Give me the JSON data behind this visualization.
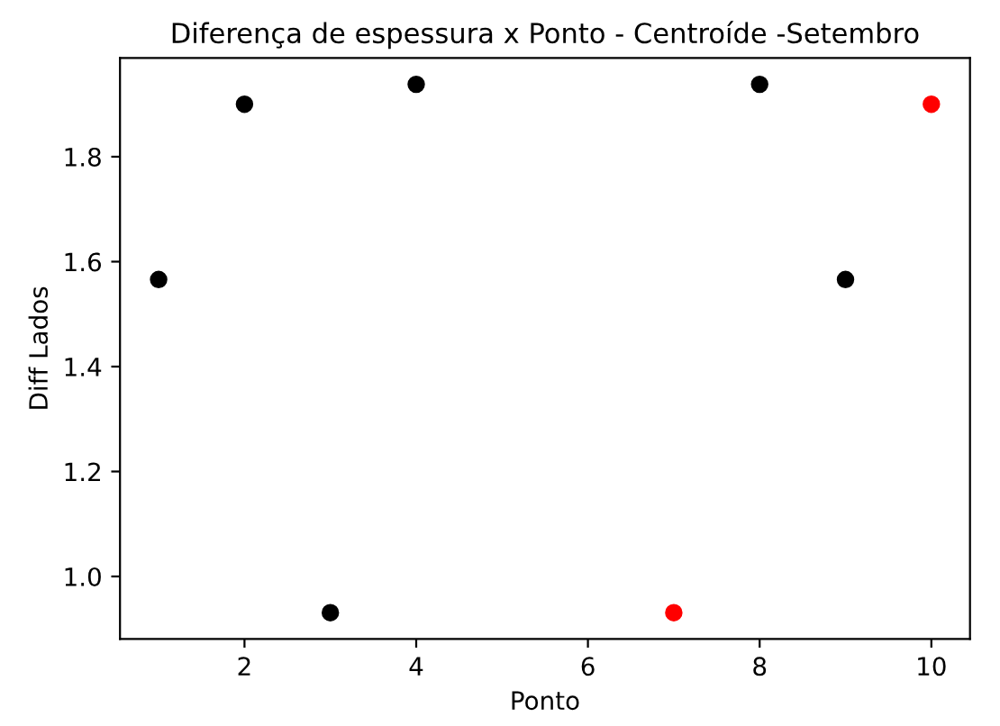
{
  "chart_data": {
    "type": "scatter",
    "title": "Diferença de espessura x Ponto - Centroíde -Setembro",
    "xlabel": "Ponto",
    "ylabel": "Diff Lados",
    "x": [
      1,
      2,
      3,
      4,
      7,
      8,
      9,
      10
    ],
    "series": [
      {
        "values": [
          1.566,
          1.9,
          0.931,
          1.938,
          0.931,
          1.938,
          1.566,
          1.9
        ],
        "colors": [
          "#000000",
          "#000000",
          "#000000",
          "#000000",
          "#ff0000",
          "#000000",
          "#000000",
          "#ff0000"
        ]
      }
    ],
    "xlim": [
      0.55,
      10.45
    ],
    "xticks": [
      2,
      4,
      6,
      8,
      10
    ],
    "ylim": [
      0.881,
      1.988
    ],
    "yticks": [
      {
        "value": 1.0,
        "label": "1.0"
      },
      {
        "value": 1.2,
        "label": "1.2"
      },
      {
        "value": 1.4,
        "label": "1.4"
      },
      {
        "value": 1.6,
        "label": "1.6"
      },
      {
        "value": 1.8,
        "label": "1.8"
      }
    ],
    "marker": "circle",
    "grid": false,
    "legend": false
  }
}
